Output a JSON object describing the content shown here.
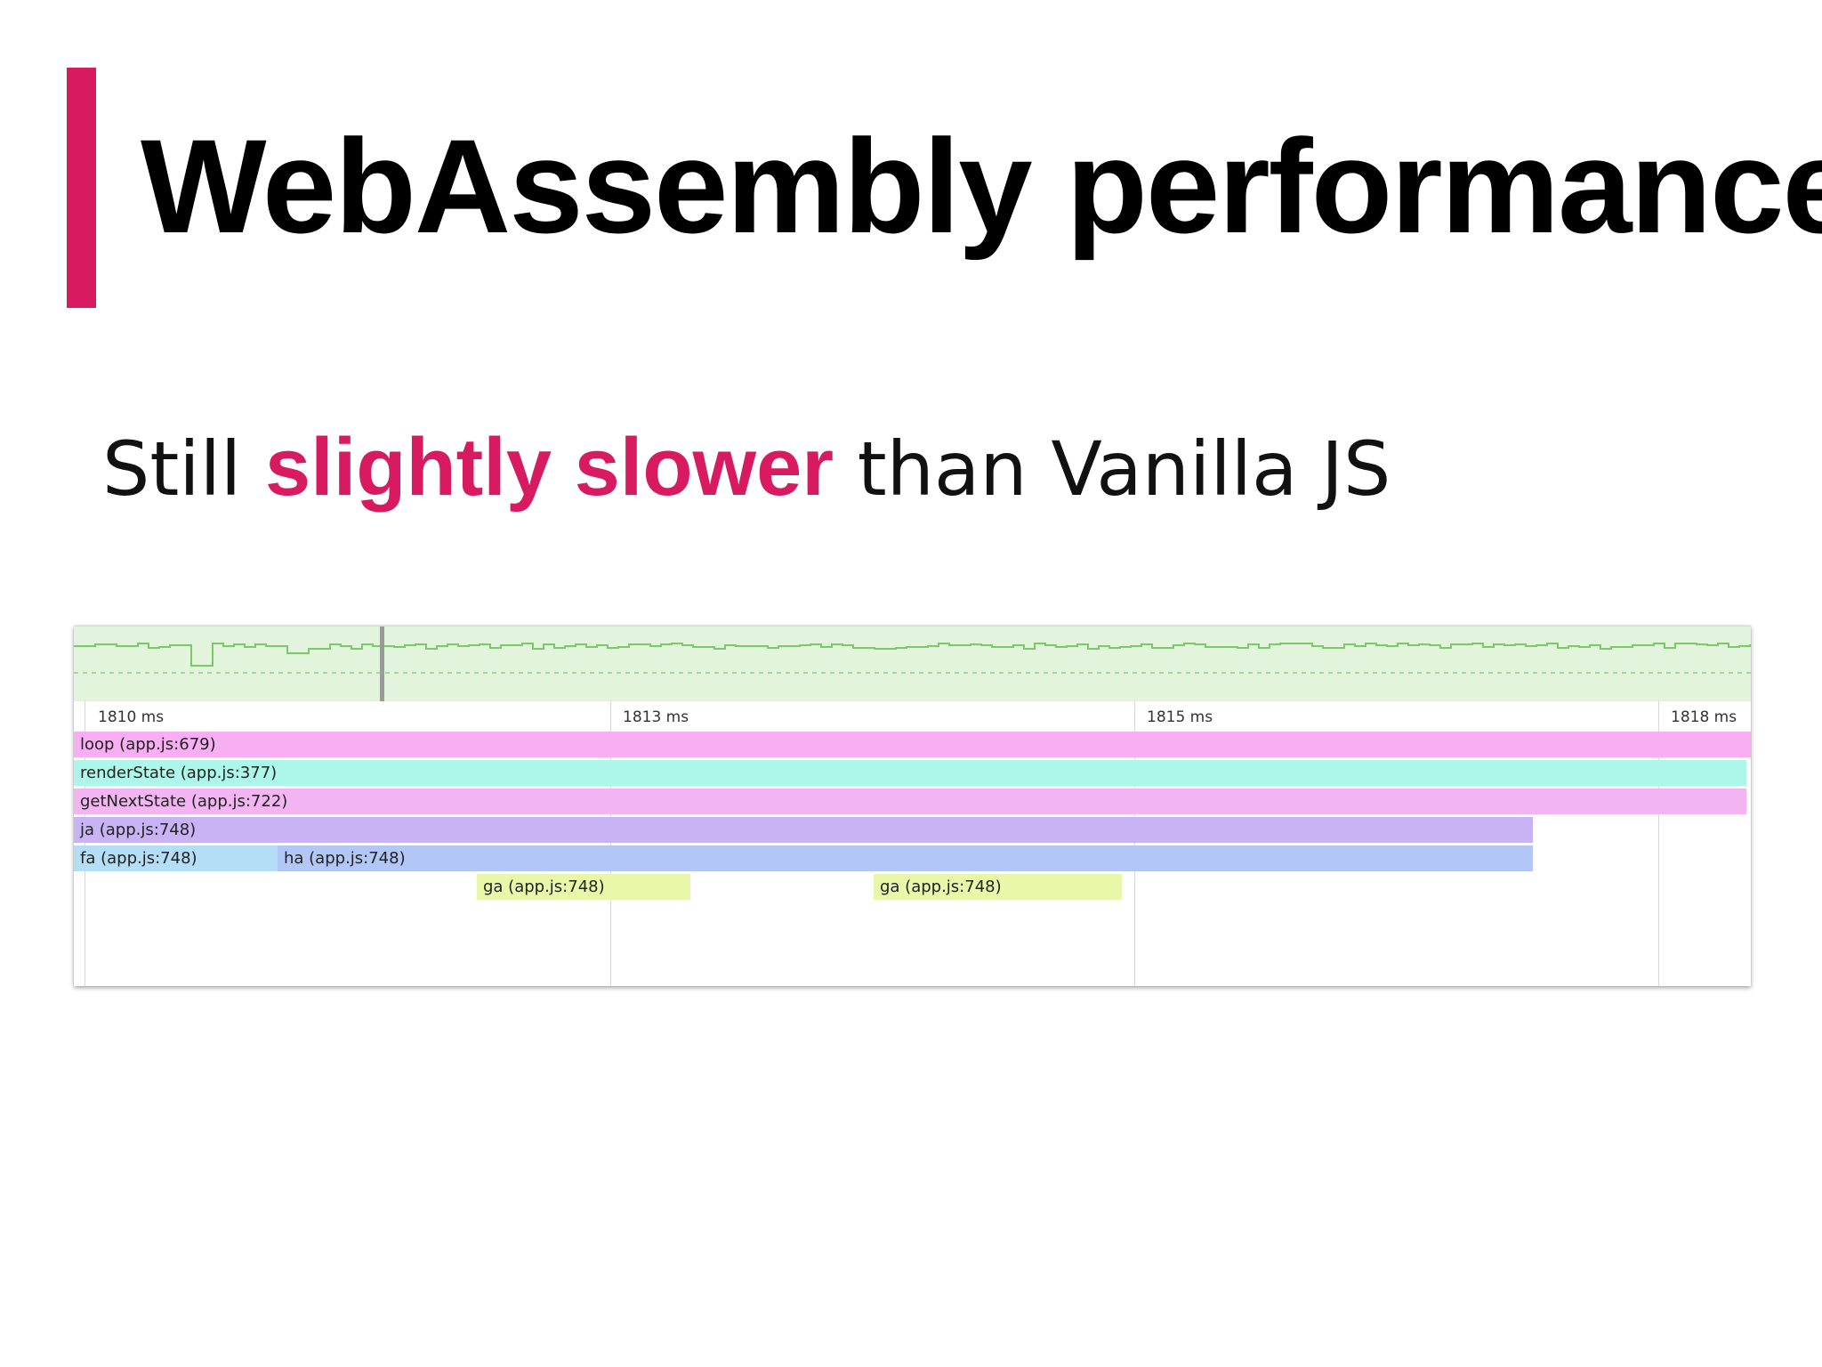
{
  "slide": {
    "title": "WebAssembly performance",
    "subtitle_pre": "Still ",
    "subtitle_emph": "slightly slower",
    "subtitle_post": " than Vanilla JS"
  },
  "colors": {
    "accent": "#d81b60",
    "overview_bg": "#e3f4dd",
    "overview_line": "#7cc96b"
  },
  "timeline": {
    "ticks": [
      "1810 ms",
      "1813 ms",
      "1815 ms",
      "1818 ms"
    ],
    "frames": [
      {
        "label": "loop (app.js:679)",
        "color": "#f7aef2"
      },
      {
        "label": "renderState (app.js:377)",
        "color": "#acf7ea"
      },
      {
        "label": "getNextState (app.js:722)",
        "color": "#f3b4f2"
      },
      {
        "label": "ja (app.js:748)",
        "color": "#c8b3f5"
      },
      {
        "label": "fa (app.js:748)",
        "color": "#b3def6"
      },
      {
        "label": "ha (app.js:748)",
        "color": "#b3c7f7"
      },
      {
        "label": "ga (app.js:748)",
        "color": "#e8f7a8"
      },
      {
        "label": "ga (app.js:748)",
        "color": "#e8f7a8"
      }
    ]
  }
}
